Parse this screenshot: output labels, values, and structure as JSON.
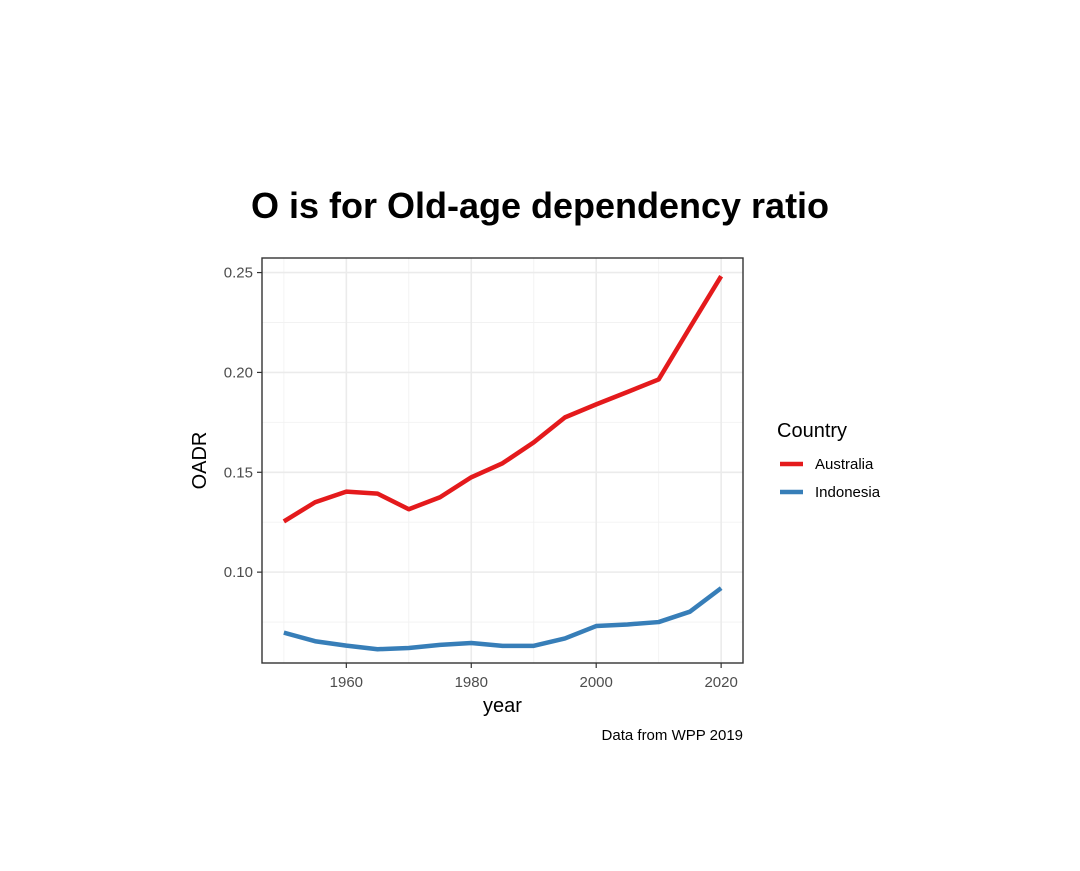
{
  "chart_data": {
    "type": "line",
    "title": "O is for Old-age dependency ratio",
    "xlabel": "year",
    "ylabel": "OADR",
    "caption": "Data from WPP 2019",
    "xlim": [
      1946.5,
      2023.5
    ],
    "ylim": [
      0.0545,
      0.2573
    ],
    "x_ticks": [
      1960,
      1980,
      2000,
      2020
    ],
    "x_tick_labels": [
      "1960",
      "1980",
      "2000",
      "2020"
    ],
    "y_ticks": [
      0.1,
      0.15,
      0.2,
      0.25
    ],
    "y_tick_labels": [
      "0.10",
      "0.15",
      "0.20",
      "0.25"
    ],
    "grid": true,
    "legend": {
      "title": "Country",
      "position": "right"
    },
    "x": [
      1950,
      1955,
      1960,
      1965,
      1970,
      1975,
      1980,
      1985,
      1990,
      1995,
      2000,
      2005,
      2010,
      2015,
      2020
    ],
    "series": [
      {
        "name": "Australia",
        "color": "#e41a1c",
        "values": [
          0.1254,
          0.135,
          0.1403,
          0.1393,
          0.1315,
          0.1375,
          0.1475,
          0.1545,
          0.165,
          0.1775,
          0.184,
          0.1902,
          0.1965,
          0.2225,
          0.2482
        ]
      },
      {
        "name": "Indonesia",
        "color": "#377eb8",
        "values": [
          0.0697,
          0.0654,
          0.0632,
          0.0614,
          0.062,
          0.0636,
          0.0645,
          0.0631,
          0.0631,
          0.0668,
          0.073,
          0.0738,
          0.075,
          0.0802,
          0.092
        ]
      }
    ]
  }
}
